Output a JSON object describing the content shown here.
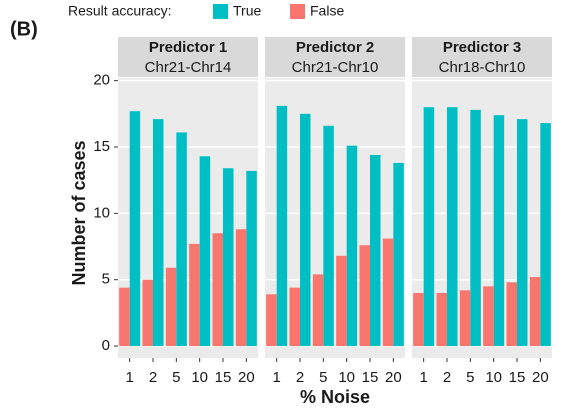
{
  "panel_label": "(B)",
  "legend_title": "Result accuracy:",
  "y_label": "Number of cases",
  "x_label": "% Noise",
  "chart_data": [
    {
      "type": "bar",
      "title": "Predictor 1",
      "subtitle": "Chr21-Chr14",
      "categories": [
        "1",
        "2",
        "5",
        "10",
        "15",
        "20"
      ],
      "series": [
        {
          "name": "True",
          "color": "#00BFC4",
          "values": [
            17.7,
            17.1,
            16.1,
            14.3,
            13.4,
            13.2
          ]
        },
        {
          "name": "False",
          "color": "#F8766D",
          "values": [
            4.4,
            5.0,
            5.9,
            7.7,
            8.5,
            8.8
          ]
        }
      ],
      "ylim": [
        -0.9,
        20.2
      ],
      "yticks": [
        0,
        5,
        10,
        15,
        20
      ],
      "grid": true
    },
    {
      "type": "bar",
      "title": "Predictor 2",
      "subtitle": "Chr21-Chr10",
      "categories": [
        "1",
        "2",
        "5",
        "10",
        "15",
        "20"
      ],
      "series": [
        {
          "name": "True",
          "color": "#00BFC4",
          "values": [
            18.1,
            17.5,
            16.6,
            15.1,
            14.4,
            13.8
          ]
        },
        {
          "name": "False",
          "color": "#F8766D",
          "values": [
            3.9,
            4.4,
            5.4,
            6.8,
            7.6,
            8.1
          ]
        }
      ],
      "ylim": [
        -0.9,
        20.2
      ],
      "yticks": [
        0,
        5,
        10,
        15,
        20
      ],
      "grid": true
    },
    {
      "type": "bar",
      "title": "Predictor 3",
      "subtitle": "Chr18-Chr10",
      "categories": [
        "1",
        "2",
        "5",
        "10",
        "15",
        "20"
      ],
      "series": [
        {
          "name": "True",
          "color": "#00BFC4",
          "values": [
            18.0,
            18.0,
            17.8,
            17.4,
            17.1,
            16.8
          ]
        },
        {
          "name": "False",
          "color": "#F8766D",
          "values": [
            4.0,
            4.0,
            4.2,
            4.5,
            4.8,
            5.2
          ]
        }
      ],
      "ylim": [
        -0.9,
        20.2
      ],
      "yticks": [
        0,
        5,
        10,
        15,
        20
      ],
      "grid": true
    }
  ]
}
